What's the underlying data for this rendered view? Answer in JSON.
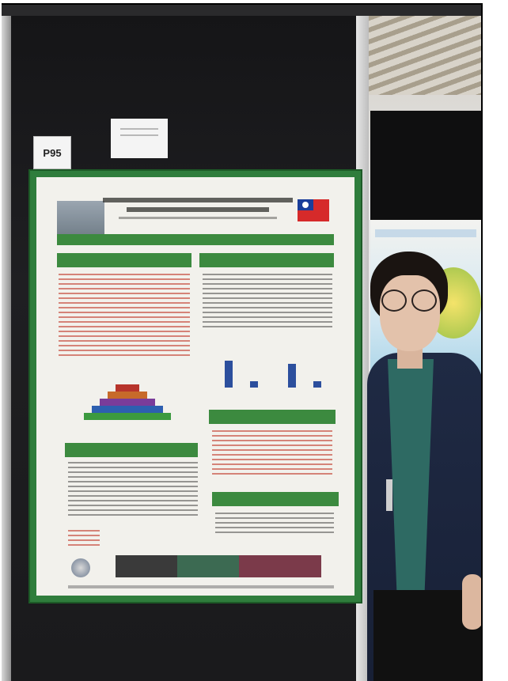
{
  "scene": {
    "description_tags": [
      "poster-board",
      "conference-poster",
      "person"
    ],
    "board_label": "P95"
  },
  "colors": {
    "poster_border": "#2f7d3c",
    "board": "#1a1a1c",
    "jacket": "#1f2a44"
  }
}
